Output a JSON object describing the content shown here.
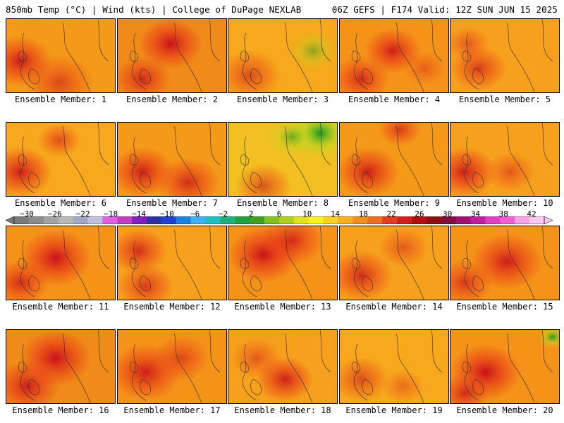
{
  "header": {
    "left": "850mb Temp (°C) | Wind (kts) | College of DuPage NEXLAB",
    "right": "06Z GEFS | F174 Valid: 12Z SUN JUN 15 2025"
  },
  "members": [
    {
      "label": "Ensemble Member: 1",
      "base": "#f59a18",
      "hot": [
        [
          20,
          60,
          45,
          0.9
        ],
        [
          75,
          90,
          50,
          0.6
        ]
      ],
      "cool": []
    },
    {
      "label": "Ensemble Member: 2",
      "base": "#f08a18",
      "hot": [
        [
          75,
          35,
          45,
          1.0
        ],
        [
          35,
          85,
          40,
          0.8
        ]
      ],
      "cool": []
    },
    {
      "label": "Ensemble Member: 3",
      "base": "#f7a81c",
      "hot": [
        [
          30,
          80,
          45,
          0.6
        ]
      ],
      "cool": [
        [
          120,
          45,
          35,
          0.5
        ]
      ]
    },
    {
      "label": "Ensemble Member: 4",
      "base": "#f59218",
      "hot": [
        [
          75,
          45,
          40,
          0.9
        ],
        [
          30,
          85,
          40,
          0.8
        ],
        [
          120,
          70,
          30,
          0.4
        ]
      ],
      "cool": []
    },
    {
      "label": "Ensemble Member: 5",
      "base": "#f7a01c",
      "hot": [
        [
          40,
          70,
          40,
          0.7
        ],
        [
          25,
          35,
          30,
          0.5
        ]
      ],
      "cool": []
    },
    {
      "label": "Ensemble Member: 6",
      "base": "#f7a81c",
      "hot": [
        [
          20,
          70,
          45,
          0.9
        ],
        [
          75,
          25,
          30,
          0.6
        ]
      ],
      "cool": []
    },
    {
      "label": "Ensemble Member: 7",
      "base": "#f59a18",
      "hot": [
        [
          35,
          70,
          45,
          0.9
        ],
        [
          100,
          85,
          45,
          0.8
        ]
      ],
      "cool": []
    },
    {
      "label": "Ensemble Member: 8",
      "base": "#f2c020",
      "hot": [
        [
          50,
          90,
          40,
          0.6
        ]
      ],
      "cool": [
        [
          130,
          15,
          45,
          1.0
        ],
        [
          90,
          20,
          35,
          0.6
        ]
      ]
    },
    {
      "label": "Ensemble Member: 9",
      "base": "#f59a18",
      "hot": [
        [
          40,
          70,
          45,
          0.9
        ],
        [
          85,
          10,
          30,
          0.7
        ]
      ],
      "cool": []
    },
    {
      "label": "Ensemble Member: 10",
      "base": "#f7a01c",
      "hot": [
        [
          20,
          70,
          45,
          0.9
        ],
        [
          85,
          70,
          35,
          0.5
        ]
      ],
      "cool": []
    },
    {
      "label": "Ensemble Member: 11",
      "base": "#f59218",
      "hot": [
        [
          70,
          45,
          50,
          1.0
        ],
        [
          20,
          80,
          40,
          0.8
        ]
      ],
      "cool": []
    },
    {
      "label": "Ensemble Member: 12",
      "base": "#f7a01c",
      "hot": [
        [
          30,
          35,
          40,
          0.8
        ],
        [
          40,
          85,
          40,
          0.7
        ]
      ],
      "cool": []
    },
    {
      "label": "Ensemble Member: 13",
      "base": "#f59218",
      "hot": [
        [
          50,
          40,
          50,
          1.0
        ],
        [
          90,
          20,
          45,
          0.8
        ]
      ],
      "cool": []
    },
    {
      "label": "Ensemble Member: 14",
      "base": "#f7a01c",
      "hot": [
        [
          30,
          70,
          45,
          0.8
        ],
        [
          90,
          30,
          35,
          0.5
        ]
      ],
      "cool": []
    },
    {
      "label": "Ensemble Member: 15",
      "base": "#f59218",
      "hot": [
        [
          80,
          50,
          50,
          0.9
        ],
        [
          20,
          80,
          40,
          0.7
        ]
      ],
      "cool": []
    },
    {
      "label": "Ensemble Member: 16",
      "base": "#f08a18",
      "hot": [
        [
          70,
          40,
          50,
          1.0
        ],
        [
          30,
          80,
          45,
          0.9
        ]
      ],
      "cool": []
    },
    {
      "label": "Ensemble Member: 17",
      "base": "#f59218",
      "hot": [
        [
          40,
          60,
          50,
          0.9
        ],
        [
          90,
          40,
          40,
          0.6
        ]
      ],
      "cool": []
    },
    {
      "label": "Ensemble Member: 18",
      "base": "#f7a01c",
      "hot": [
        [
          80,
          70,
          40,
          0.9
        ],
        [
          40,
          40,
          35,
          0.5
        ]
      ],
      "cool": []
    },
    {
      "label": "Ensemble Member: 19",
      "base": "#f7a81c",
      "hot": [
        [
          30,
          70,
          40,
          0.6
        ],
        [
          90,
          80,
          30,
          0.4
        ]
      ],
      "cool": []
    },
    {
      "label": "Ensemble Member: 20",
      "base": "#f59218",
      "hot": [
        [
          50,
          60,
          50,
          1.0
        ],
        [
          20,
          90,
          35,
          0.8
        ]
      ],
      "cool": [
        [
          145,
          10,
          20,
          0.9
        ]
      ]
    }
  ],
  "colorbar": {
    "ticks": [
      "−30",
      "−26",
      "−22",
      "−18",
      "−14",
      "−10",
      "−6",
      "−2",
      "2",
      "6",
      "10",
      "14",
      "18",
      "22",
      "26",
      "30",
      "34",
      "38",
      "42"
    ],
    "colors": [
      "#7a7a7a",
      "#8c8c8c",
      "#a3a3a3",
      "#b8b8b8",
      "#a0a8c8",
      "#c0c0e0",
      "#e060e0",
      "#c040c0",
      "#8020c0",
      "#3030a0",
      "#2040d0",
      "#2080e0",
      "#40b0f0",
      "#20c0c0",
      "#20b080",
      "#20a040",
      "#40a020",
      "#80c020",
      "#b0d020",
      "#e0e020",
      "#f8f020",
      "#f8d020",
      "#f8b020",
      "#f09020",
      "#e87020",
      "#e04020",
      "#d02020",
      "#b01010",
      "#901010",
      "#801040",
      "#a01070",
      "#c020a0",
      "#e040c0",
      "#f060d0",
      "#f8a0e8",
      "#f8c8f0"
    ]
  }
}
